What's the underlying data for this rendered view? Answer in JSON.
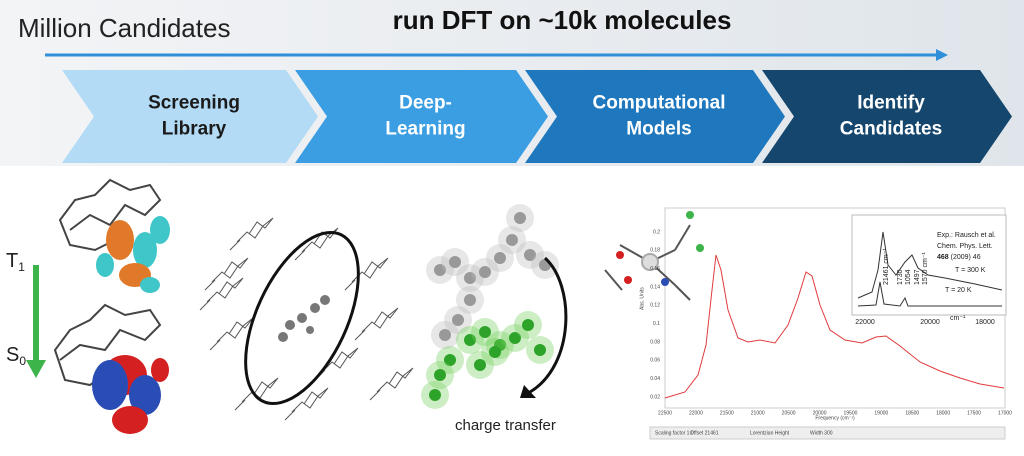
{
  "header": {
    "left_title": "Million Candidates",
    "title": "run DFT on ~10k molecules"
  },
  "pipeline": [
    {
      "lines": [
        "Screening",
        "Library"
      ]
    },
    {
      "lines": [
        "Deep-",
        "Learning"
      ]
    },
    {
      "lines": [
        "Computational",
        "Models"
      ]
    },
    {
      "lines": [
        "Identify",
        "Candidates"
      ]
    }
  ],
  "states": [
    {
      "symbol": "T",
      "subscript": "1"
    },
    {
      "symbol": "S",
      "subscript": "0"
    }
  ],
  "charge_transfer_label": "charge transfer",
  "spectrum": {
    "y_label": "Abs. Units",
    "x_label": "Frequency (cm⁻¹)",
    "x_ticks": [
      22500,
      22000,
      21500,
      21000,
      20500,
      20000,
      19500,
      19000,
      18500,
      18000,
      17500,
      17000
    ],
    "y_ticks": [
      0.02,
      0.04,
      0.06,
      0.08,
      0.1,
      0.12,
      0.14,
      0.16,
      0.18,
      0.2
    ],
    "inset": {
      "reference": [
        "Exp.: Rausch et al.",
        "Chem. Phys. Lett."
      ],
      "volume": "468",
      "citation_rest": "(2009) 46",
      "temperatures": [
        "T = 300 K",
        "T = 20 K"
      ],
      "x_ticks": [
        22000,
        20000,
        18000
      ],
      "unit": "cm⁻¹",
      "peaks": [
        "21461 cm⁻¹",
        "1730",
        "1054",
        "1497",
        "1570 cm⁻¹"
      ]
    },
    "toolbar": [
      "Scaling factor 1.0",
      "Offset 21461",
      "Lorentzian Height",
      "Width 300"
    ]
  }
}
